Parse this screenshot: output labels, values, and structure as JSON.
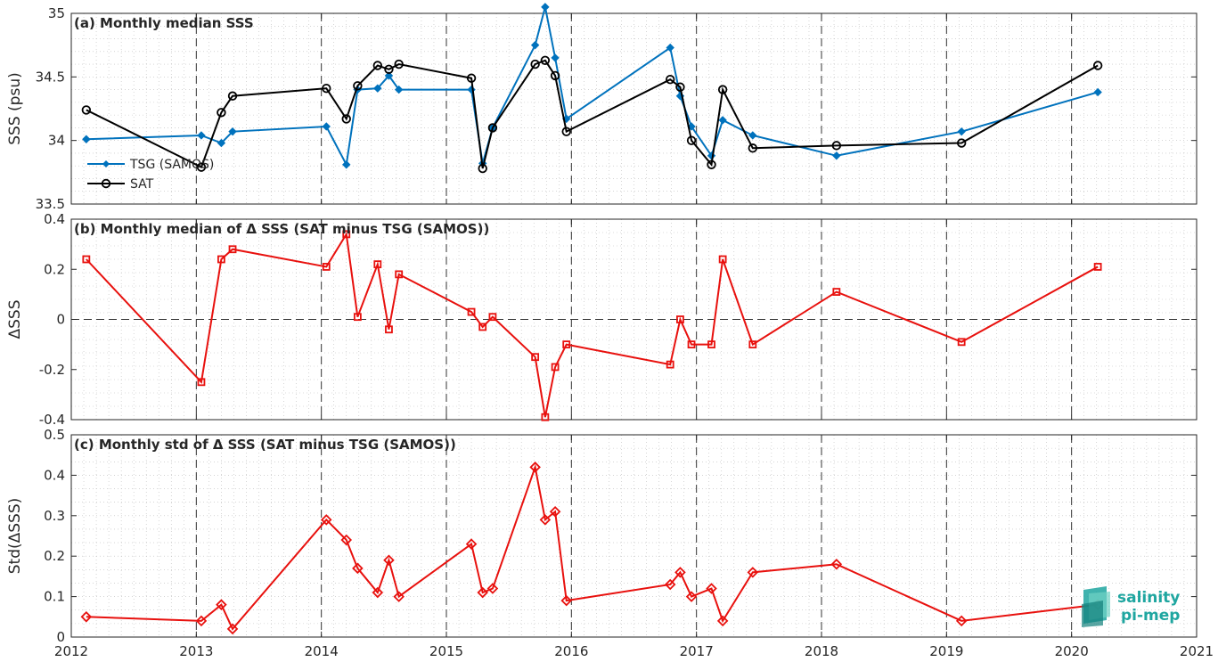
{
  "colors": {
    "tsg": "#0072BD",
    "sat": "#000000",
    "delta": "#e8110e",
    "logo": "#1fa6a0"
  },
  "logo": {
    "line1": "salinity",
    "line2": "pi-mep"
  },
  "chart_data": [
    {
      "type": "line",
      "title": "(a) Monthly median SSS",
      "xlabel": "",
      "ylabel": "SSS (psu)",
      "xlim": [
        2012,
        2021
      ],
      "ylim": [
        33.5,
        35
      ],
      "xticks": [
        "2012",
        "2013",
        "2014",
        "2015",
        "2016",
        "2017",
        "2018",
        "2019",
        "2020",
        "2021"
      ],
      "yticks": [
        "33.5",
        "34",
        "34.5",
        "35"
      ],
      "grid": "on (dotted minor grid, dashed yearly lines)",
      "legend": "bottom-left",
      "series": [
        {
          "name": "TSG (SAMOS)",
          "marker": "diamond-filled",
          "x": [
            2012.12,
            2013.04,
            2013.2,
            2013.29,
            2014.04,
            2014.2,
            2014.29,
            2014.45,
            2014.54,
            2014.62,
            2015.2,
            2015.29,
            2015.37,
            2015.71,
            2015.79,
            2015.87,
            2015.96,
            2016.79,
            2016.87,
            2016.96,
            2017.12,
            2017.21,
            2017.45,
            2018.12,
            2019.12,
            2020.21
          ],
          "values": [
            34.01,
            34.04,
            33.98,
            34.07,
            34.11,
            33.81,
            34.4,
            34.41,
            34.51,
            34.4,
            34.4,
            33.82,
            34.1,
            34.75,
            35.05,
            34.65,
            34.17,
            34.73,
            34.35,
            34.11,
            33.88,
            34.16,
            34.04,
            33.88,
            34.07,
            34.38
          ]
        },
        {
          "name": "SAT",
          "marker": "circle-open",
          "x": [
            2012.12,
            2013.04,
            2013.2,
            2013.29,
            2014.04,
            2014.2,
            2014.29,
            2014.45,
            2014.54,
            2014.62,
            2015.2,
            2015.29,
            2015.37,
            2015.71,
            2015.79,
            2015.87,
            2015.96,
            2016.79,
            2016.87,
            2016.96,
            2017.12,
            2017.21,
            2017.45,
            2018.12,
            2019.12,
            2020.21
          ],
          "values": [
            34.24,
            33.79,
            34.22,
            34.35,
            34.41,
            34.17,
            34.43,
            34.59,
            34.56,
            34.6,
            34.49,
            33.78,
            34.1,
            34.6,
            34.63,
            34.51,
            34.07,
            34.48,
            34.42,
            34.0,
            33.81,
            34.4,
            33.94,
            33.96,
            33.98,
            34.59
          ]
        }
      ]
    },
    {
      "type": "line",
      "title": "(b) Monthly median of Δ SSS (SAT minus TSG (SAMOS))",
      "xlabel": "",
      "ylabel": "ΔSSS",
      "xlim": [
        2012,
        2021
      ],
      "ylim": [
        -0.4,
        0.4
      ],
      "yticks": [
        "-0.4",
        "-0.2",
        "0",
        "0.2",
        "0.4"
      ],
      "grid": "on (dashed zero line)",
      "series": [
        {
          "marker": "square-open",
          "x": [
            2012.12,
            2013.04,
            2013.2,
            2013.29,
            2014.04,
            2014.2,
            2014.29,
            2014.45,
            2014.54,
            2014.62,
            2015.2,
            2015.29,
            2015.37,
            2015.71,
            2015.79,
            2015.87,
            2015.96,
            2016.79,
            2016.87,
            2016.96,
            2017.12,
            2017.21,
            2017.45,
            2018.12,
            2019.12,
            2020.21
          ],
          "values": [
            0.24,
            -0.25,
            0.24,
            0.28,
            0.21,
            0.34,
            0.01,
            0.22,
            -0.04,
            0.18,
            0.03,
            -0.03,
            0.01,
            -0.15,
            -0.39,
            -0.19,
            -0.1,
            -0.18,
            0.0,
            -0.1,
            -0.1,
            0.24,
            -0.1,
            0.11,
            -0.09,
            0.21
          ]
        }
      ]
    },
    {
      "type": "line",
      "title": "(c) Monthly std of Δ SSS (SAT minus TSG (SAMOS))",
      "xlabel": "",
      "ylabel": "Std(ΔSSS)",
      "xlim": [
        2012,
        2021
      ],
      "ylim": [
        0,
        0.5
      ],
      "yticks": [
        "0",
        "0.1",
        "0.2",
        "0.3",
        "0.4",
        "0.5"
      ],
      "grid": "on",
      "series": [
        {
          "marker": "diamond-open",
          "x": [
            2012.12,
            2013.04,
            2013.2,
            2013.29,
            2014.04,
            2014.2,
            2014.29,
            2014.45,
            2014.54,
            2014.62,
            2015.2,
            2015.29,
            2015.37,
            2015.71,
            2015.79,
            2015.87,
            2015.96,
            2016.79,
            2016.87,
            2016.96,
            2017.12,
            2017.21,
            2017.45,
            2018.12,
            2019.12,
            2020.21
          ],
          "values": [
            0.05,
            0.04,
            0.08,
            0.02,
            0.29,
            0.24,
            0.17,
            0.11,
            0.19,
            0.1,
            0.23,
            0.11,
            0.12,
            0.42,
            0.29,
            0.31,
            0.09,
            0.13,
            0.16,
            0.1,
            0.12,
            0.04,
            0.16,
            0.18,
            0.04,
            0.08
          ]
        }
      ]
    }
  ]
}
